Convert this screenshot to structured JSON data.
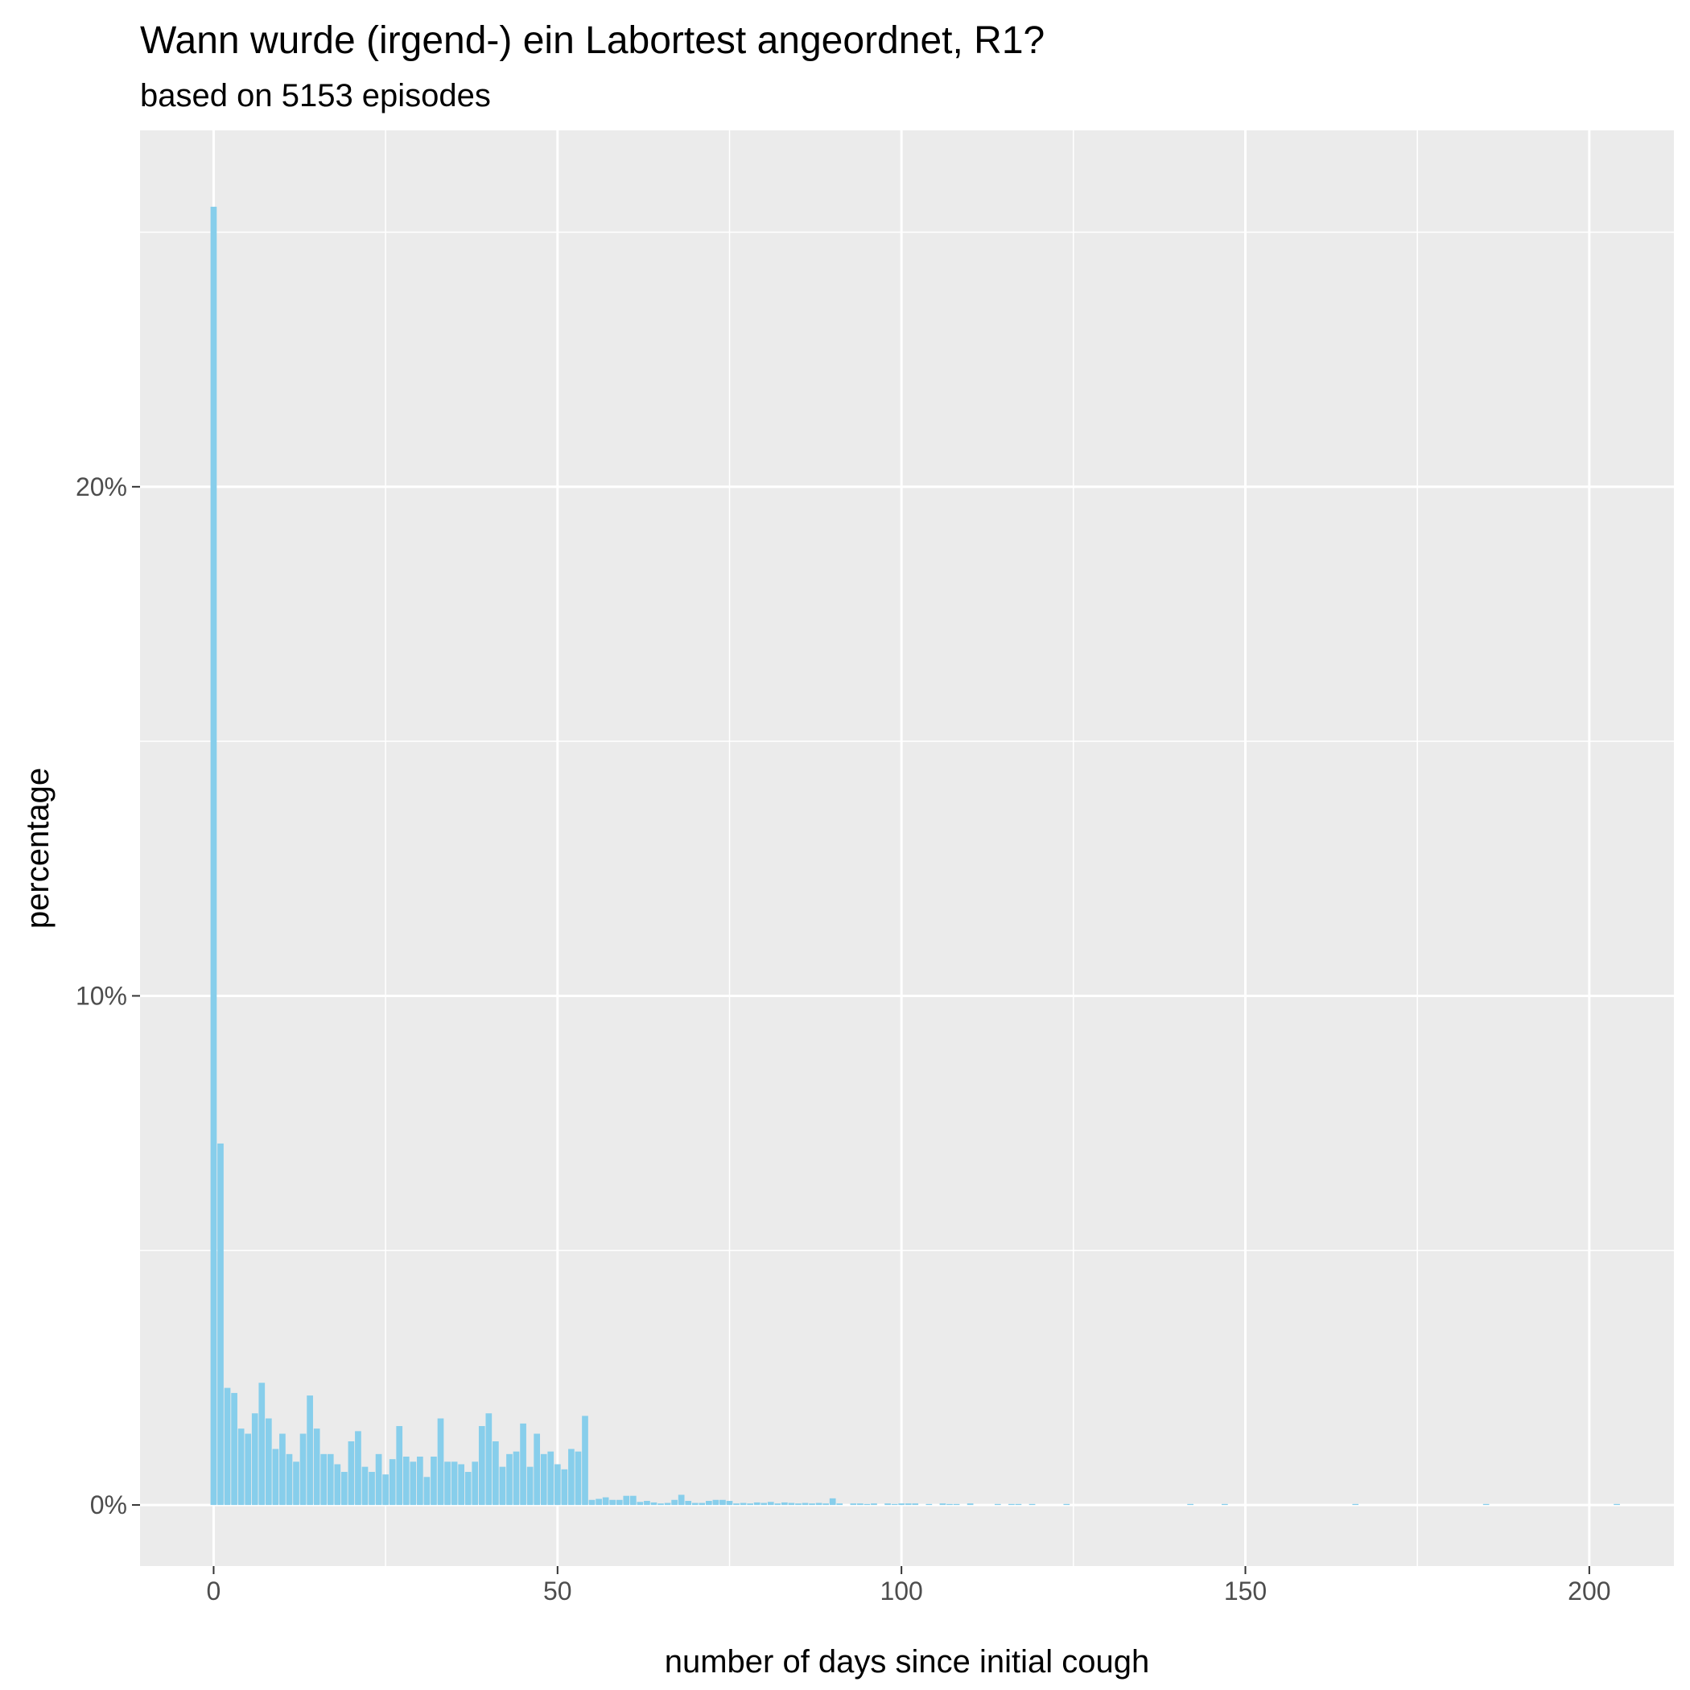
{
  "colors": {
    "panel": "#ebebeb",
    "grid": "#ffffff",
    "bar": "#87ceeb",
    "tick": "#333333"
  },
  "chart_data": {
    "type": "bar",
    "title": "Wann wurde (irgend-) ein Labortest angeordnet, R1?",
    "subtitle": "based on 5153 episodes",
    "xlabel": "number of days since initial cough",
    "ylabel": "percentage",
    "xlim": [
      -10.7,
      212.3
    ],
    "ylim": [
      -1.2,
      27.0
    ],
    "x_ticks": [
      0,
      50,
      100,
      150,
      200
    ],
    "x_tick_labels": [
      "0",
      "50",
      "100",
      "150",
      "200"
    ],
    "x_minor_ticks": [
      25,
      75,
      125,
      175
    ],
    "y_ticks": [
      0,
      10,
      20
    ],
    "y_tick_labels": [
      "0%",
      "10%",
      "20%"
    ],
    "y_minor_ticks": [
      5,
      15,
      25
    ],
    "grid": true,
    "legend": "none",
    "bar_width": 0.9,
    "x": [
      0,
      1,
      2,
      3,
      4,
      5,
      6,
      7,
      8,
      9,
      10,
      11,
      12,
      13,
      14,
      15,
      16,
      17,
      18,
      19,
      20,
      21,
      22,
      23,
      24,
      25,
      26,
      27,
      28,
      29,
      30,
      31,
      32,
      33,
      34,
      35,
      36,
      37,
      38,
      39,
      40,
      41,
      42,
      43,
      44,
      45,
      46,
      47,
      48,
      49,
      50,
      51,
      52,
      53,
      54,
      55,
      56,
      57,
      58,
      59,
      60,
      61,
      62,
      63,
      64,
      65,
      66,
      67,
      68,
      69,
      70,
      71,
      72,
      73,
      74,
      75,
      76,
      77,
      78,
      79,
      80,
      81,
      82,
      83,
      84,
      85,
      86,
      87,
      88,
      89,
      90,
      91,
      93,
      94,
      95,
      96,
      98,
      99,
      100,
      101,
      102,
      104,
      106,
      107,
      108,
      110,
      114,
      116,
      117,
      119,
      124,
      142,
      147,
      166,
      185,
      204
    ],
    "values": [
      25.5,
      7.1,
      2.3,
      2.2,
      1.5,
      1.4,
      1.8,
      2.4,
      1.7,
      1.1,
      1.4,
      1.0,
      0.85,
      1.4,
      2.15,
      1.5,
      1.0,
      1.0,
      0.8,
      0.65,
      1.25,
      1.45,
      0.75,
      0.65,
      1.0,
      0.6,
      0.9,
      1.55,
      0.95,
      0.85,
      0.95,
      0.55,
      0.95,
      1.7,
      0.85,
      0.85,
      0.8,
      0.65,
      0.85,
      1.55,
      1.8,
      1.25,
      0.75,
      1.0,
      1.05,
      1.6,
      0.75,
      1.4,
      1.0,
      1.05,
      0.8,
      0.7,
      1.1,
      1.05,
      1.75,
      0.1,
      0.12,
      0.15,
      0.1,
      0.1,
      0.18,
      0.18,
      0.06,
      0.08,
      0.05,
      0.03,
      0.04,
      0.1,
      0.2,
      0.08,
      0.04,
      0.04,
      0.08,
      0.1,
      0.1,
      0.08,
      0.03,
      0.04,
      0.03,
      0.05,
      0.04,
      0.06,
      0.03,
      0.05,
      0.04,
      0.03,
      0.04,
      0.03,
      0.04,
      0.03,
      0.13,
      0.03,
      0.03,
      0.03,
      0.02,
      0.03,
      0.03,
      0.02,
      0.03,
      0.03,
      0.03,
      0.02,
      0.03,
      0.02,
      0.02,
      0.03,
      0.02,
      0.02,
      0.02,
      0.02,
      0.02,
      0.02,
      0.02,
      0.02,
      0.02,
      0.02
    ]
  }
}
